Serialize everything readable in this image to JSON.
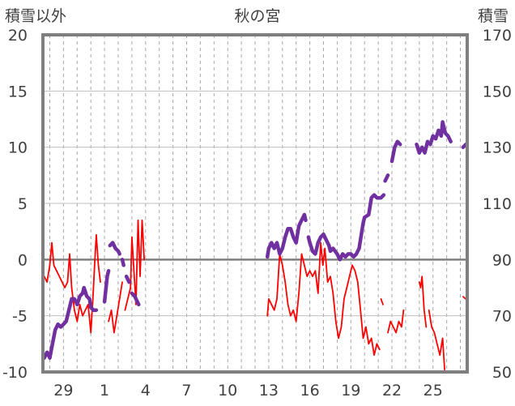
{
  "chart_data": {
    "type": "line",
    "title": "秋の宮",
    "ylabel_left": "積雪以外",
    "ylabel_right": "積雪",
    "xlabel": "",
    "x_ticks": [
      "29",
      "1",
      "4",
      "7",
      "10",
      "13",
      "16",
      "19",
      "22",
      "25"
    ],
    "x_day_range": [
      27.5,
      58.5
    ],
    "x_tick_days": [
      29,
      32,
      35,
      38,
      41,
      44,
      47,
      50,
      53,
      56
    ],
    "left_axis": {
      "ylim": [
        -10,
        20
      ],
      "ticks": [
        "-10",
        "-5",
        "0",
        "5",
        "10",
        "15",
        "20"
      ],
      "tick_values": [
        -10,
        -5,
        0,
        5,
        10,
        15,
        20
      ]
    },
    "right_axis": {
      "ylim": [
        50,
        170
      ],
      "ticks": [
        "50",
        "70",
        "90",
        "110",
        "130",
        "150",
        "170"
      ],
      "tick_values": [
        50,
        70,
        90,
        110,
        130,
        150,
        170
      ]
    },
    "grid": {
      "vertical_dashed_daily": true,
      "horizontal_solid": true
    },
    "series": [
      {
        "axis": "left",
        "color": "#ff0000",
        "segments": [
          [
            [
              27.6,
              -1.5
            ],
            [
              27.8,
              -2.0
            ],
            [
              28.0,
              -0.5
            ],
            [
              28.15,
              1.5
            ],
            [
              28.3,
              -0.5
            ],
            [
              28.5,
              -1.0
            ],
            [
              28.7,
              -1.5
            ],
            [
              28.9,
              -2.0
            ],
            [
              29.1,
              -2.5
            ],
            [
              29.3,
              -2.0
            ],
            [
              29.45,
              0.5
            ],
            [
              29.6,
              -2.5
            ],
            [
              29.8,
              -4.5
            ],
            [
              30.0,
              -5.5
            ],
            [
              30.2,
              -4.0
            ],
            [
              30.4,
              -5.0
            ],
            [
              30.6,
              -4.5
            ],
            [
              30.8,
              -4.0
            ],
            [
              31.0,
              -6.5
            ],
            [
              31.15,
              -3.5
            ],
            [
              31.3,
              0.0
            ],
            [
              31.4,
              2.2
            ],
            [
              31.55,
              -0.5
            ],
            [
              31.7,
              -2.0
            ]
          ],
          [
            [
              32.3,
              -5.5
            ],
            [
              32.5,
              -4.5
            ],
            [
              32.7,
              -6.5
            ],
            [
              32.9,
              -5.0
            ],
            [
              33.1,
              -3.5
            ],
            [
              33.3,
              -2.0
            ]
          ],
          [
            [
              33.5,
              -4.5
            ],
            [
              33.7,
              -3.5
            ],
            [
              33.9,
              -2.5
            ],
            [
              34.0,
              2.0
            ],
            [
              34.15,
              -1.0
            ],
            [
              34.3,
              -4.0
            ],
            [
              34.45,
              3.5
            ],
            [
              34.6,
              -1.5
            ],
            [
              34.75,
              3.5
            ],
            [
              34.9,
              0.0
            ]
          ],
          [
            [
              43.9,
              -5.0
            ],
            [
              44.0,
              -3.5
            ],
            [
              44.2,
              -4.0
            ],
            [
              44.4,
              -4.5
            ],
            [
              44.6,
              -3.5
            ],
            [
              44.8,
              0.5
            ],
            [
              45.0,
              -0.5
            ],
            [
              45.2,
              -2.0
            ],
            [
              45.4,
              -4.0
            ],
            [
              45.6,
              -5.0
            ],
            [
              45.8,
              -4.5
            ],
            [
              46.0,
              -5.5
            ],
            [
              46.2,
              -3.0
            ],
            [
              46.4,
              0.5
            ],
            [
              46.6,
              -0.5
            ],
            [
              46.8,
              -1.5
            ],
            [
              47.0,
              -1.0
            ],
            [
              47.2,
              -1.5
            ],
            [
              47.4,
              -1.0
            ],
            [
              47.6,
              -3.0
            ],
            [
              47.8,
              1.5
            ],
            [
              47.95,
              -0.5
            ],
            [
              48.1,
              1.0
            ],
            [
              48.3,
              -2.0
            ],
            [
              48.5,
              -1.5
            ],
            [
              48.7,
              -3.0
            ],
            [
              48.9,
              -5.5
            ],
            [
              49.1,
              -7.0
            ],
            [
              49.3,
              -6.0
            ],
            [
              49.5,
              -3.5
            ],
            [
              49.7,
              -2.5
            ],
            [
              49.9,
              -1.5
            ],
            [
              50.1,
              -0.5
            ],
            [
              50.3,
              -1.0
            ],
            [
              50.5,
              -2.0
            ],
            [
              50.7,
              -4.5
            ],
            [
              50.9,
              -7.0
            ],
            [
              51.1,
              -6.0
            ],
            [
              51.3,
              -7.5
            ],
            [
              51.5,
              -7.0
            ],
            [
              51.7,
              -8.5
            ],
            [
              51.9,
              -7.5
            ],
            [
              52.1,
              -8.0
            ]
          ],
          [
            [
              52.2,
              -3.5
            ],
            [
              52.35,
              -4.0
            ]
          ],
          [
            [
              52.7,
              -6.5
            ],
            [
              52.9,
              -5.5
            ],
            [
              53.1,
              -6.0
            ],
            [
              53.3,
              -6.5
            ],
            [
              53.5,
              -5.5
            ],
            [
              53.7,
              -6.0
            ],
            [
              53.85,
              -4.5
            ]
          ],
          [
            [
              55.0,
              -2.0
            ],
            [
              55.1,
              -2.5
            ],
            [
              55.2,
              -1.5
            ],
            [
              55.35,
              -4.5
            ],
            [
              55.5,
              -6.0
            ]
          ],
          [
            [
              55.7,
              -4.5
            ],
            [
              55.9,
              -6.0
            ],
            [
              56.1,
              -6.5
            ],
            [
              56.3,
              -7.5
            ],
            [
              56.5,
              -8.5
            ],
            [
              56.7,
              -7.0
            ],
            [
              56.85,
              -9.8
            ]
          ],
          [
            [
              58.2,
              -3.3
            ],
            [
              58.4,
              -3.5
            ]
          ]
        ]
      },
      {
        "axis": "right",
        "color": "#7030a0",
        "segments": [
          [
            [
              27.6,
              55
            ],
            [
              27.8,
              57
            ],
            [
              28.0,
              55
            ],
            [
              28.2,
              60
            ],
            [
              28.4,
              65
            ],
            [
              28.6,
              67
            ],
            [
              28.8,
              66
            ],
            [
              29.0,
              67
            ],
            [
              29.2,
              68
            ],
            [
              29.4,
              72
            ],
            [
              29.6,
              76
            ],
            [
              29.8,
              76
            ],
            [
              30.0,
              74
            ],
            [
              30.2,
              77
            ],
            [
              30.4,
              78
            ],
            [
              30.5,
              80
            ],
            [
              30.7,
              77
            ],
            [
              30.9,
              76
            ],
            [
              31.0,
              73
            ],
            [
              31.2,
              72
            ],
            [
              31.4,
              72
            ]
          ],
          [
            [
              32.0,
              75
            ],
            [
              32.2,
              84
            ],
            [
              32.3,
              86
            ]
          ],
          [
            [
              32.4,
              95
            ],
            [
              32.6,
              96
            ],
            [
              32.8,
              94
            ],
            [
              33.0,
              93
            ],
            [
              33.1,
              92
            ]
          ],
          [
            [
              33.3,
              90
            ],
            [
              33.4,
              88
            ]
          ],
          [
            [
              33.6,
              84
            ],
            [
              33.8,
              82
            ]
          ],
          [
            [
              34.0,
              78
            ],
            [
              34.2,
              77
            ],
            [
              34.4,
              75
            ],
            [
              34.5,
              74
            ]
          ],
          [
            [
              43.9,
              91
            ],
            [
              44.0,
              94
            ],
            [
              44.2,
              96
            ],
            [
              44.4,
              94
            ],
            [
              44.6,
              96
            ],
            [
              44.8,
              92
            ],
            [
              45.0,
              94
            ],
            [
              45.2,
              98
            ],
            [
              45.4,
              101
            ],
            [
              45.6,
              101
            ],
            [
              45.8,
              98
            ],
            [
              46.0,
              96
            ],
            [
              46.2,
              102
            ],
            [
              46.4,
              104
            ],
            [
              46.5,
              105
            ],
            [
              46.6,
              106
            ],
            [
              46.7,
              104
            ]
          ],
          [
            [
              46.9,
              98
            ],
            [
              47.0,
              96
            ],
            [
              47.2,
              93
            ],
            [
              47.4,
              92
            ],
            [
              47.6,
              96
            ],
            [
              47.8,
              98
            ],
            [
              48.0,
              99
            ],
            [
              48.2,
              97
            ],
            [
              48.4,
              95
            ],
            [
              48.5,
              93
            ],
            [
              48.7,
              94
            ],
            [
              49.0,
              92
            ],
            [
              49.2,
              90
            ],
            [
              49.4,
              92
            ],
            [
              49.6,
              91
            ],
            [
              49.8,
              92
            ],
            [
              50.0,
              92
            ],
            [
              50.2,
              91
            ],
            [
              50.4,
              92
            ],
            [
              50.6,
              94
            ],
            [
              50.8,
              100
            ],
            [
              50.9,
              103
            ],
            [
              51.0,
              105
            ],
            [
              51.3,
              106
            ],
            [
              51.5,
              112
            ],
            [
              51.7,
              113
            ],
            [
              51.9,
              112
            ],
            [
              52.2,
              112
            ],
            [
              52.4,
              113
            ]
          ],
          [
            [
              52.5,
              118
            ],
            [
              52.7,
              120
            ]
          ],
          [
            [
              53.0,
              125
            ],
            [
              53.2,
              130
            ],
            [
              53.4,
              132
            ],
            [
              53.6,
              131
            ]
          ],
          [
            [
              54.8,
              131
            ],
            [
              55.0,
              128
            ],
            [
              55.2,
              130
            ],
            [
              55.4,
              128
            ],
            [
              55.6,
              132
            ]
          ],
          [
            [
              55.8,
              131
            ],
            [
              56.0,
              134
            ],
            [
              56.2,
              133
            ],
            [
              56.4,
              136
            ],
            [
              56.6,
              134
            ],
            [
              56.7,
              139
            ],
            [
              56.9,
              135
            ],
            [
              57.1,
              134
            ],
            [
              57.3,
              132
            ]
          ],
          [
            [
              58.2,
              130
            ],
            [
              58.4,
              131
            ]
          ]
        ]
      }
    ]
  }
}
